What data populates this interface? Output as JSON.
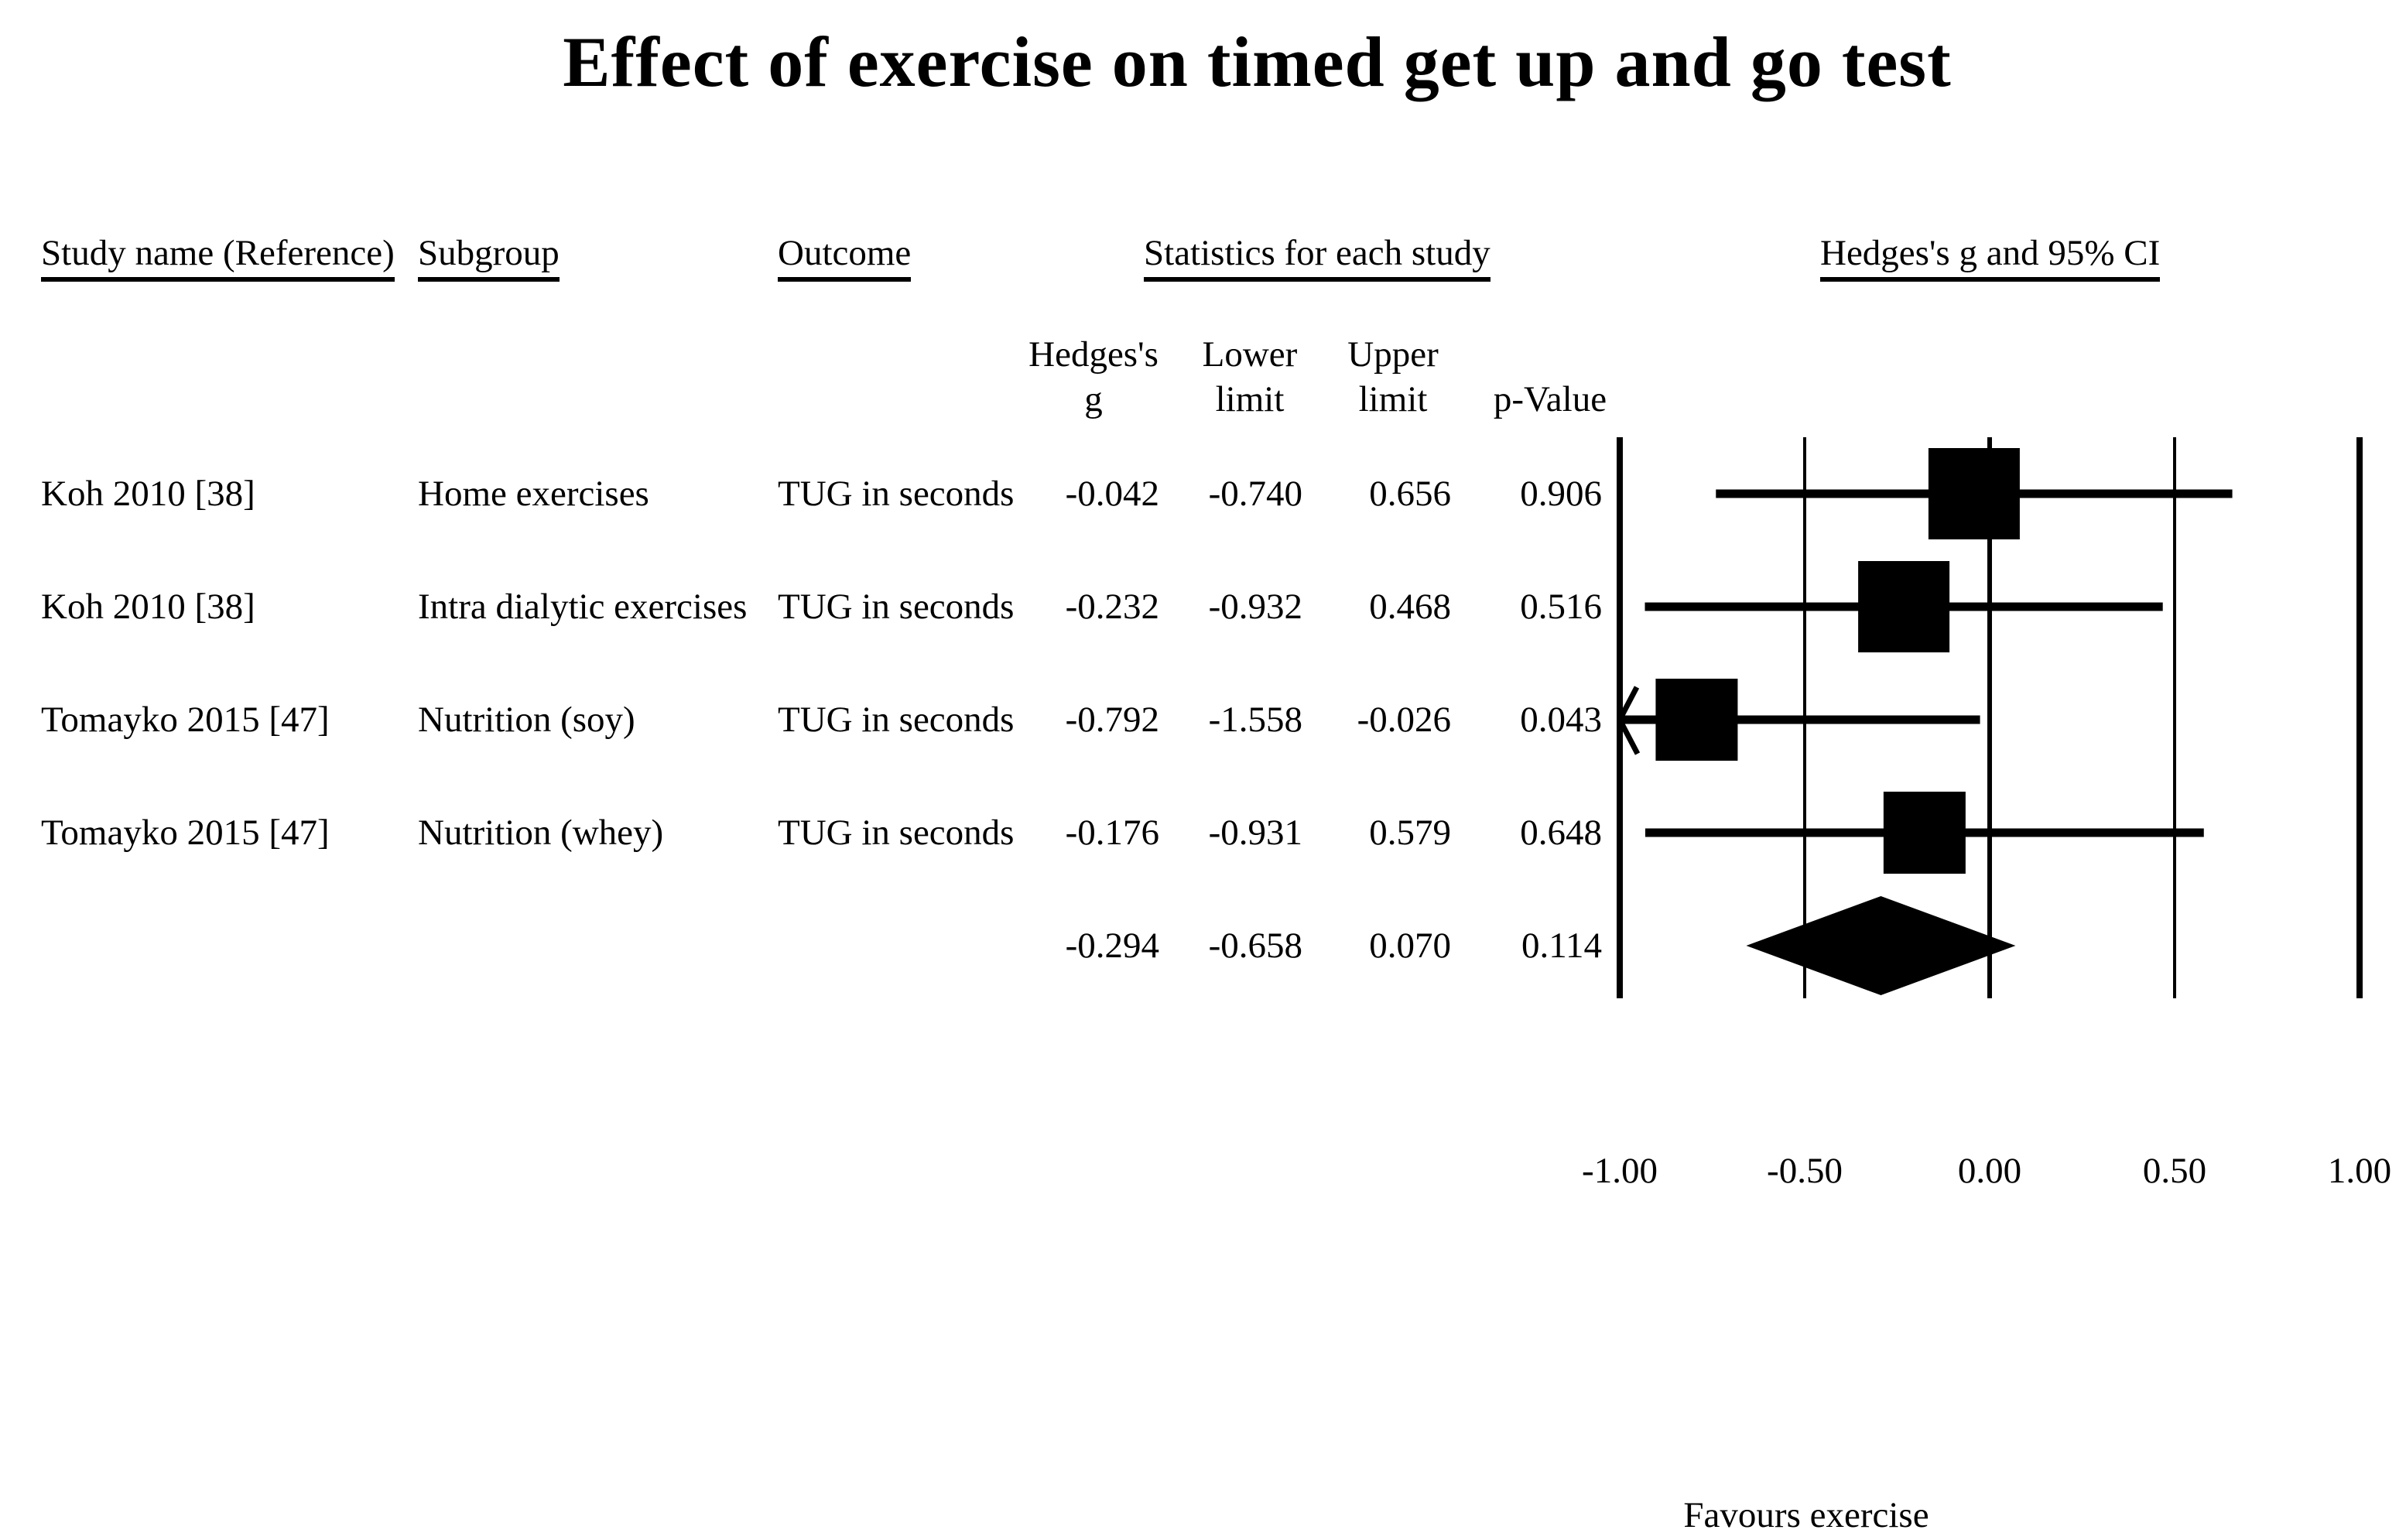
{
  "title": "Effect of exercise on timed get up and go test",
  "colors": {
    "ink": "#000000",
    "background": "#ffffff"
  },
  "columns": {
    "study": "Study name (Reference)",
    "subgroup": "Subgroup",
    "outcome": "Outcome",
    "stats_group": "Statistics for each study",
    "plot_group": "Hedges's g and 95% CI",
    "sub": {
      "g_line1": "Hedges's",
      "g_line2": "g",
      "lower_line1": "Lower",
      "lower_line2": "limit",
      "upper_line1": "Upper",
      "upper_line2": "limit",
      "p": "p-Value"
    }
  },
  "rows": [
    {
      "study": "Koh 2010 [38]",
      "subgroup": "Home exercises",
      "outcome": "TUG in seconds",
      "g": "-0.042",
      "lower": "-0.740",
      "upper": "0.656",
      "p": "0.906"
    },
    {
      "study": "Koh 2010 [38]",
      "subgroup": "Intra dialytic exercises",
      "outcome": "TUG in seconds",
      "g": "-0.232",
      "lower": "-0.932",
      "upper": "0.468",
      "p": "0.516"
    },
    {
      "study": "Tomayko 2015 [47]",
      "subgroup": "Nutrition (soy)",
      "outcome": "TUG in seconds",
      "g": "-0.792",
      "lower": "-1.558",
      "upper": "-0.026",
      "p": "0.043"
    },
    {
      "study": "Tomayko 2015 [47]",
      "subgroup": "Nutrition (whey)",
      "outcome": "TUG in seconds",
      "g": "-0.176",
      "lower": "-0.931",
      "upper": "0.579",
      "p": "0.648"
    },
    {
      "study": "",
      "subgroup": "",
      "outcome": "",
      "g": "-0.294",
      "lower": "-0.658",
      "upper": "0.070",
      "p": "0.114"
    }
  ],
  "chart_data": {
    "type": "forest",
    "title": "Effect of exercise on timed get up and go test",
    "effect_measure": "Hedges's g",
    "xlim": [
      -1.0,
      1.0
    ],
    "ticks": [
      {
        "value": -1.0,
        "label": "-1.00"
      },
      {
        "value": -0.5,
        "label": "-0.50"
      },
      {
        "value": 0.0,
        "label": "0.00"
      },
      {
        "value": 0.5,
        "label": "0.50"
      },
      {
        "value": 1.0,
        "label": "1.00"
      }
    ],
    "studies": [
      {
        "study": "Koh 2010 [38]",
        "subgroup": "Home exercises",
        "outcome": "TUG in seconds",
        "g": -0.042,
        "lower": -0.74,
        "upper": 0.656,
        "p": 0.906,
        "square_size": 118,
        "clipped_lower": false
      },
      {
        "study": "Koh 2010 [38]",
        "subgroup": "Intra dialytic exercises",
        "outcome": "TUG in seconds",
        "g": -0.232,
        "lower": -0.932,
        "upper": 0.468,
        "p": 0.516,
        "square_size": 118,
        "clipped_lower": false
      },
      {
        "study": "Tomayko 2015 [47]",
        "subgroup": "Nutrition (soy)",
        "outcome": "TUG in seconds",
        "g": -0.792,
        "lower": -1.558,
        "upper": -0.026,
        "p": 0.043,
        "square_size": 106,
        "clipped_lower": true
      },
      {
        "study": "Tomayko 2015 [47]",
        "subgroup": "Nutrition (whey)",
        "outcome": "TUG in seconds",
        "g": -0.176,
        "lower": -0.931,
        "upper": 0.579,
        "p": 0.648,
        "square_size": 106,
        "clipped_lower": false
      }
    ],
    "summary": {
      "g": -0.294,
      "lower": -0.658,
      "upper": 0.07,
      "p": 0.114
    },
    "footer_left": "Favours exercise",
    "grid": "vertical-lines-at-ticks",
    "legend_position": "none"
  }
}
